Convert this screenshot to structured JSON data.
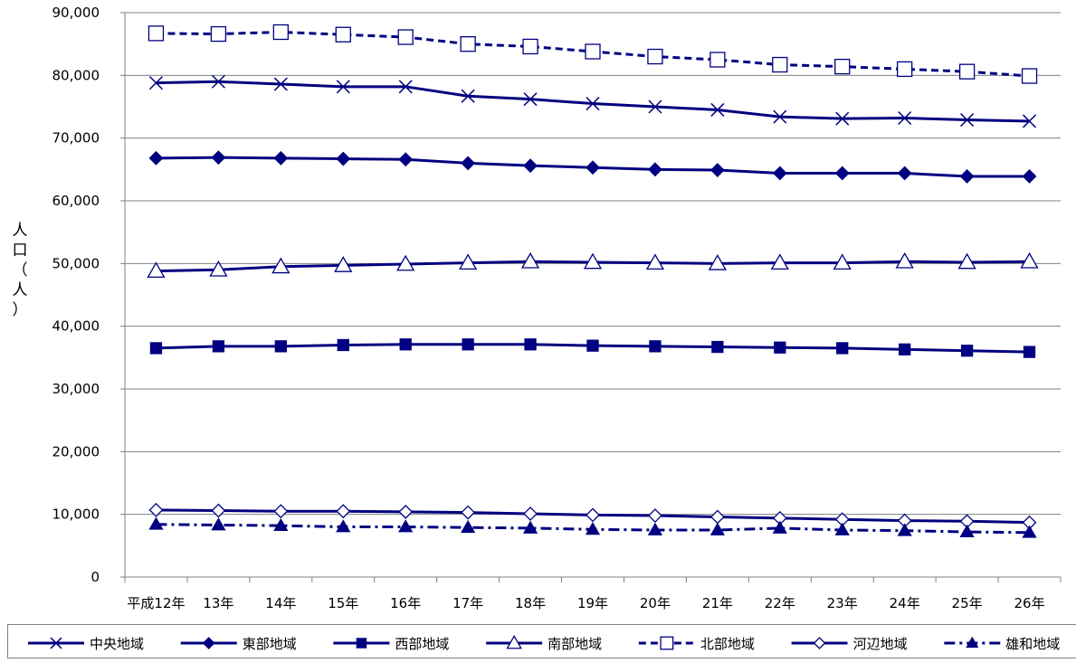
{
  "chart_data": {
    "type": "line",
    "title": "",
    "xlabel": "",
    "ylabel": "人口（人）",
    "ylim": [
      0,
      90000
    ],
    "yticks": [
      "0",
      "10,000",
      "20,000",
      "30,000",
      "40,000",
      "50,000",
      "60,000",
      "70,000",
      "80,000",
      "90,000"
    ],
    "categories": [
      "平成12年",
      "13年",
      "14年",
      "15年",
      "16年",
      "17年",
      "18年",
      "19年",
      "20年",
      "21年",
      "22年",
      "23年",
      "24年",
      "25年",
      "26年"
    ],
    "grid": true,
    "legend_position": "bottom",
    "series": [
      {
        "name": "中央地域",
        "marker": "x",
        "line": "solid",
        "values": [
          78800,
          79000,
          78600,
          78200,
          78200,
          76700,
          76200,
          75500,
          75000,
          74500,
          73400,
          73100,
          73200,
          72900,
          72700
        ]
      },
      {
        "name": "東部地域",
        "marker": "diamond-filled",
        "line": "solid",
        "values": [
          66800,
          66900,
          66800,
          66700,
          66600,
          66000,
          65600,
          65300,
          65000,
          64900,
          64400,
          64400,
          64400,
          63900,
          63900
        ]
      },
      {
        "name": "西部地域",
        "marker": "square-filled",
        "line": "solid",
        "values": [
          36500,
          36800,
          36800,
          37000,
          37100,
          37100,
          37100,
          36900,
          36800,
          36700,
          36600,
          36500,
          36300,
          36100,
          35900
        ]
      },
      {
        "name": "南部地域",
        "marker": "triangle-open",
        "line": "solid",
        "values": [
          48800,
          49000,
          49500,
          49700,
          49900,
          50100,
          50300,
          50200,
          50100,
          50000,
          50100,
          50100,
          50300,
          50200,
          50300
        ]
      },
      {
        "name": "北部地域",
        "marker": "square-open",
        "line": "dashed",
        "values": [
          86700,
          86600,
          86900,
          86500,
          86100,
          85000,
          84600,
          83800,
          83000,
          82500,
          81700,
          81400,
          81000,
          80600,
          79900
        ]
      },
      {
        "name": "河辺地域",
        "marker": "diamond-open",
        "line": "solid",
        "values": [
          10700,
          10600,
          10500,
          10500,
          10400,
          10300,
          10100,
          9900,
          9800,
          9600,
          9400,
          9200,
          9000,
          8900,
          8700
        ]
      },
      {
        "name": "雄和地域",
        "marker": "triangle-filled",
        "line": "dashdot",
        "values": [
          8400,
          8300,
          8200,
          8000,
          8000,
          7900,
          7800,
          7600,
          7500,
          7500,
          7800,
          7500,
          7400,
          7200,
          7100
        ]
      }
    ],
    "colors": {
      "series": "#000080",
      "grid": "#808080",
      "axis": "#808080"
    }
  }
}
